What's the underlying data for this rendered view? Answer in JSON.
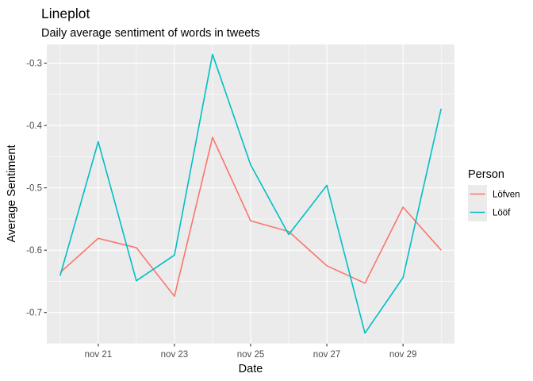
{
  "chart_data": {
    "type": "line",
    "title": "Lineplot",
    "subtitle": "Daily average sentiment of words in tweets",
    "xlabel": "Date",
    "ylabel": "Average Sentiment",
    "x": [
      "2019-11-20",
      "2019-11-21",
      "2019-11-22",
      "2019-11-23",
      "2019-11-24",
      "2019-11-25",
      "2019-11-26",
      "2019-11-27",
      "2019-11-28",
      "2019-11-29",
      "2019-11-30"
    ],
    "x_tick_labels": [
      "nov 21",
      "nov 23",
      "nov 25",
      "nov 27",
      "nov 29"
    ],
    "y_ticks": [
      -0.7,
      -0.6,
      -0.5,
      -0.4,
      -0.3
    ],
    "y_tick_labels": [
      "-0.7",
      "-0.6",
      "-0.5",
      "-0.4",
      "-0.3"
    ],
    "ylim": [
      -0.75,
      -0.27
    ],
    "grid": true,
    "legend_position": "right",
    "legend_title": "Person",
    "series": [
      {
        "name": "Löfven",
        "color": "#f8766d",
        "values": [
          -0.636,
          -0.581,
          -0.596,
          -0.674,
          -0.419,
          -0.553,
          -0.57,
          -0.625,
          -0.653,
          -0.531,
          -0.6
        ]
      },
      {
        "name": "Lööf",
        "color": "#00bfc4",
        "values": [
          -0.641,
          -0.426,
          -0.649,
          -0.608,
          -0.286,
          -0.463,
          -0.575,
          -0.496,
          -0.733,
          -0.644,
          -0.373
        ]
      }
    ]
  }
}
